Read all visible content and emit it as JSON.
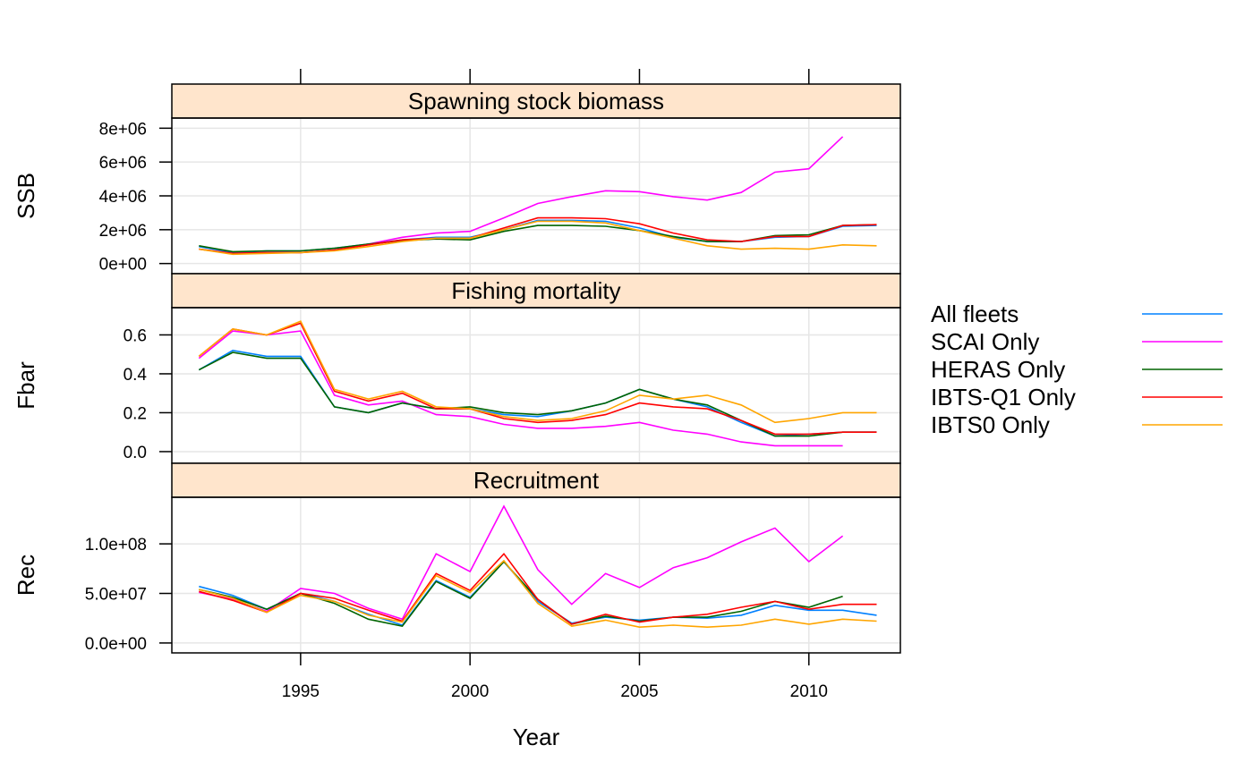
{
  "chart_data": {
    "type": "line",
    "xlabel": "Year",
    "xlim": [
      1991.2,
      2012.7
    ],
    "x_ticks": [
      {
        "value": 1995,
        "label": "1995"
      },
      {
        "value": 2000,
        "label": "2000"
      },
      {
        "value": 2005,
        "label": "2005"
      },
      {
        "value": 2010,
        "label": "2010"
      }
    ],
    "x": [
      1992,
      1993,
      1994,
      1995,
      1996,
      1997,
      1998,
      1999,
      2000,
      2001,
      2002,
      2003,
      2004,
      2005,
      2006,
      2007,
      2008,
      2009,
      2010,
      2011,
      2012
    ],
    "legend": {
      "placement": "right",
      "entries": [
        {
          "name": "All fleets",
          "color": "#0080ff"
        },
        {
          "name": "SCAI Only",
          "color": "#ff00ff"
        },
        {
          "name": "HERAS Only",
          "color": "#006400"
        },
        {
          "name": "IBTS-Q1 Only",
          "color": "#ff0000"
        },
        {
          "name": "IBTS0 Only",
          "color": "#ffa500"
        }
      ]
    },
    "panels": [
      {
        "strip": "Spawning stock biomass",
        "ylabel": "SSB",
        "ylim": [
          -600000,
          8600000
        ],
        "y_ticks": [
          {
            "value": 0,
            "label": "0e+00"
          },
          {
            "value": 2000000,
            "label": "2e+06"
          },
          {
            "value": 4000000,
            "label": "4e+06"
          },
          {
            "value": 6000000,
            "label": "6e+06"
          },
          {
            "value": 8000000,
            "label": "8e+06"
          }
        ],
        "series": [
          {
            "name": "All fleets",
            "values": [
              1000000,
              650000,
              750000,
              750000,
              900000,
              1150000,
              1400000,
              1550000,
              1550000,
              2000000,
              2550000,
              2550000,
              2500000,
              2100000,
              1550000,
              1300000,
              1300000,
              1550000,
              1600000,
              2200000,
              2250000
            ]
          },
          {
            "name": "SCAI Only",
            "values": [
              850000,
              600000,
              650000,
              650000,
              800000,
              1150000,
              1550000,
              1800000,
              1900000,
              2700000,
              3550000,
              3950000,
              4300000,
              4250000,
              3950000,
              3750000,
              4200000,
              5400000,
              5600000,
              7500000,
              null
            ]
          },
          {
            "name": "HERAS Only",
            "values": [
              1050000,
              700000,
              750000,
              750000,
              900000,
              1150000,
              1350000,
              1450000,
              1400000,
              1900000,
              2250000,
              2250000,
              2200000,
              1950000,
              1600000,
              1300000,
              1300000,
              1650000,
              1700000,
              2250000,
              2300000
            ]
          },
          {
            "name": "IBTS-Q1 Only",
            "values": [
              850000,
              600000,
              650000,
              650000,
              800000,
              1100000,
              1400000,
              1500000,
              1500000,
              2100000,
              2700000,
              2700000,
              2650000,
              2350000,
              1800000,
              1400000,
              1300000,
              1600000,
              1600000,
              2250000,
              2300000
            ]
          },
          {
            "name": "IBTS0 Only",
            "values": [
              850000,
              550000,
              600000,
              650000,
              750000,
              1000000,
              1300000,
              1500000,
              1500000,
              2000000,
              2500000,
              2500000,
              2400000,
              1950000,
              1500000,
              1050000,
              850000,
              900000,
              850000,
              1100000,
              1050000
            ]
          }
        ]
      },
      {
        "strip": "Fishing mortality",
        "ylabel": "Fbar",
        "ylim": [
          -0.06,
          0.74
        ],
        "y_ticks": [
          {
            "value": 0.0,
            "label": "0.0"
          },
          {
            "value": 0.2,
            "label": "0.2"
          },
          {
            "value": 0.4,
            "label": "0.4"
          },
          {
            "value": 0.6,
            "label": "0.6"
          }
        ],
        "series": [
          {
            "name": "All fleets",
            "values": [
              0.42,
              0.52,
              0.49,
              0.49,
              0.23,
              0.2,
              0.25,
              0.22,
              0.22,
              0.19,
              0.18,
              0.21,
              0.25,
              0.32,
              0.27,
              0.23,
              0.15,
              0.08,
              0.09,
              0.1,
              0.1
            ]
          },
          {
            "name": "SCAI Only",
            "values": [
              0.48,
              0.62,
              0.6,
              0.62,
              0.29,
              0.24,
              0.26,
              0.19,
              0.18,
              0.14,
              0.12,
              0.12,
              0.13,
              0.15,
              0.11,
              0.09,
              0.05,
              0.03,
              0.03,
              0.03,
              null
            ]
          },
          {
            "name": "HERAS Only",
            "values": [
              0.42,
              0.51,
              0.48,
              0.48,
              0.23,
              0.2,
              0.25,
              0.22,
              0.23,
              0.2,
              0.19,
              0.21,
              0.25,
              0.32,
              0.27,
              0.24,
              0.16,
              0.08,
              0.08,
              0.1,
              0.1
            ]
          },
          {
            "name": "IBTS-Q1 Only",
            "values": [
              0.49,
              0.63,
              0.6,
              0.66,
              0.31,
              0.26,
              0.3,
              0.22,
              0.22,
              0.17,
              0.15,
              0.16,
              0.19,
              0.25,
              0.23,
              0.22,
              0.16,
              0.09,
              0.09,
              0.1,
              0.1
            ]
          },
          {
            "name": "IBTS0 Only",
            "values": [
              0.49,
              0.63,
              0.6,
              0.67,
              0.32,
              0.27,
              0.31,
              0.23,
              0.22,
              0.18,
              0.16,
              0.17,
              0.21,
              0.29,
              0.27,
              0.29,
              0.24,
              0.15,
              0.17,
              0.2,
              0.2
            ]
          }
        ]
      },
      {
        "strip": "Recruitment",
        "ylabel": "Rec",
        "ylim": [
          -10000000,
          147000000
        ],
        "y_ticks": [
          {
            "value": 0,
            "label": "0.0e+00"
          },
          {
            "value": 50000000,
            "label": "5.0e+07"
          },
          {
            "value": 100000000,
            "label": "1.0e+08"
          }
        ],
        "series": [
          {
            "name": "All fleets",
            "values": [
              57000000,
              48000000,
              34000000,
              50000000,
              42000000,
              29000000,
              18000000,
              63000000,
              46000000,
              82000000,
              42000000,
              20000000,
              26000000,
              23000000,
              26000000,
              25000000,
              28000000,
              38000000,
              33000000,
              33000000,
              28000000
            ]
          },
          {
            "name": "SCAI Only",
            "values": [
              51000000,
              44000000,
              32000000,
              55000000,
              50000000,
              35000000,
              24000000,
              90000000,
              72000000,
              138000000,
              74000000,
              39000000,
              70000000,
              56000000,
              76000000,
              86000000,
              102000000,
              116000000,
              82000000,
              108000000,
              null
            ]
          },
          {
            "name": "HERAS Only",
            "values": [
              54000000,
              46000000,
              34000000,
              50000000,
              40000000,
              24000000,
              17000000,
              62000000,
              45000000,
              82000000,
              44000000,
              19000000,
              27000000,
              22000000,
              26000000,
              26000000,
              32000000,
              42000000,
              36000000,
              47000000,
              null
            ]
          },
          {
            "name": "IBTS-Q1 Only",
            "values": [
              52000000,
              43000000,
              31000000,
              50000000,
              45000000,
              33000000,
              22000000,
              70000000,
              53000000,
              90000000,
              44000000,
              19000000,
              29000000,
              21000000,
              26000000,
              29000000,
              36000000,
              42000000,
              34000000,
              39000000,
              39000000
            ]
          },
          {
            "name": "IBTS0 Only",
            "values": [
              54000000,
              45000000,
              31000000,
              48000000,
              42000000,
              28000000,
              21000000,
              68000000,
              51000000,
              83000000,
              40000000,
              17000000,
              23000000,
              16000000,
              18000000,
              16000000,
              18000000,
              24000000,
              19000000,
              24000000,
              22000000
            ]
          }
        ]
      }
    ]
  }
}
